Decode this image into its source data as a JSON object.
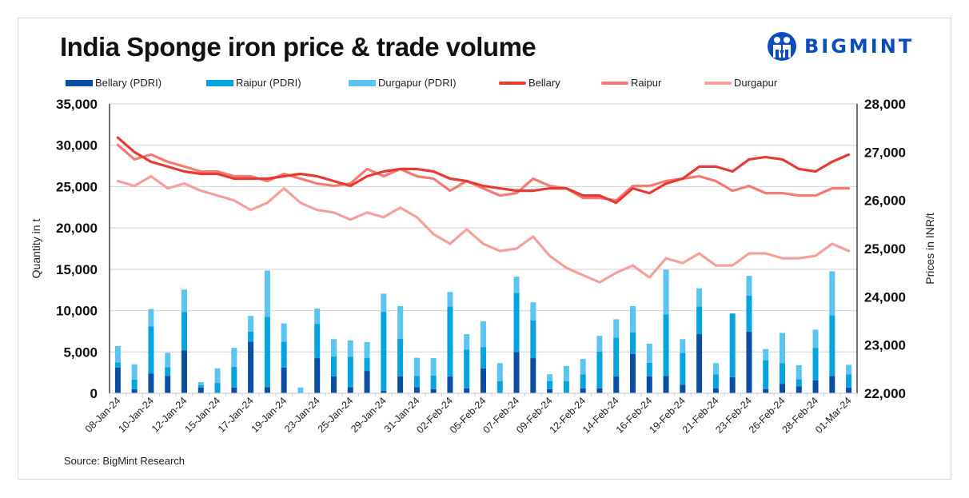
{
  "header": {
    "title": "India Sponge iron price & trade volume",
    "logo_text": "BIGMINT",
    "logo_icon": "bigmint-people-icon"
  },
  "legend": [
    {
      "label": "Bellary (PDRI)",
      "kind": "bar",
      "color": "#0a4ea3"
    },
    {
      "label": "Raipur (PDRI)",
      "kind": "bar",
      "color": "#05a3e0"
    },
    {
      "label": "Durgapur (PDRI)",
      "kind": "bar",
      "color": "#5bc5f2"
    },
    {
      "label": "Bellary",
      "kind": "line",
      "color": "#e83a35"
    },
    {
      "label": "Raipur",
      "kind": "line",
      "color": "#f27b73"
    },
    {
      "label": "Durgapur",
      "kind": "line",
      "color": "#f4a19b"
    }
  ],
  "source": "Source: BigMint Research",
  "chart_data": {
    "type": "bar",
    "subtype": "stacked bar + line combo (dual axis)",
    "title": "India Sponge iron price & trade volume",
    "ylabel": "Quantity in t",
    "y2label": "Prices in INR/t",
    "ylim": [
      0,
      35000
    ],
    "y2lim": [
      22000,
      28000
    ],
    "yticks": [
      "0",
      "5,000",
      "10,000",
      "15,000",
      "20,000",
      "25,000",
      "30,000",
      "35,000"
    ],
    "y2ticks": [
      "22,000",
      "23,000",
      "24,000",
      "25,000",
      "26,000",
      "27,000",
      "28,000"
    ],
    "grid": true,
    "legend_position": "top",
    "categories": [
      "08-Jan-24",
      "",
      "10-Jan-24",
      "",
      "12-Jan-24",
      "",
      "15-Jan-24",
      "",
      "17-Jan-24",
      "",
      "19-Jan-24",
      "",
      "23-Jan-24",
      "",
      "25-Jan-24",
      "",
      "29-Jan-24",
      "",
      "31-Jan-24",
      "",
      "02-Feb-24",
      "",
      "05-Feb-24",
      "",
      "07-Feb-24",
      "",
      "09-Feb-24",
      "",
      "12-Feb-24",
      "",
      "14-Feb-24",
      "",
      "16-Feb-24",
      "",
      "19-Feb-24",
      "",
      "21-Feb-24",
      "",
      "23-Feb-24",
      "",
      "26-Feb-24",
      "",
      "28-Feb-24",
      "",
      "01-Mar-24"
    ],
    "series": [
      {
        "name": "Bellary (PDRI)",
        "type": "bar",
        "axis": "left",
        "color": "#0a4ea3",
        "values": [
          3100,
          500,
          2400,
          2100,
          5200,
          700,
          0,
          700,
          6250,
          750,
          3100,
          0,
          4250,
          2050,
          750,
          2700,
          300,
          2050,
          750,
          500,
          2050,
          600,
          3000,
          0,
          5000,
          4250,
          500,
          0,
          600,
          600,
          2050,
          4750,
          2050,
          2100,
          1050,
          7150,
          600,
          1950,
          7450,
          500,
          1150,
          850,
          1550,
          2100,
          700
        ]
      },
      {
        "name": "Raipur (PDRI)",
        "type": "bar",
        "axis": "left",
        "color": "#05a3e0",
        "values": [
          650,
          1150,
          5700,
          1050,
          4650,
          300,
          1250,
          2500,
          1200,
          8500,
          3150,
          0,
          4150,
          2400,
          3650,
          1550,
          9550,
          4550,
          1350,
          1650,
          8450,
          4700,
          2600,
          1450,
          7150,
          4550,
          950,
          1450,
          1700,
          4450,
          4700,
          2600,
          1650,
          7450,
          3850,
          3350,
          1700,
          7700,
          4350,
          3500,
          2500,
          850,
          3950,
          7350,
          1600
        ]
      },
      {
        "name": "Durgapur (PDRI)",
        "type": "bar",
        "axis": "left",
        "color": "#5bc5f2",
        "values": [
          1950,
          1850,
          2100,
          1750,
          2700,
          350,
          1750,
          2300,
          1900,
          5600,
          2200,
          700,
          1850,
          2100,
          2000,
          1950,
          2200,
          3950,
          2200,
          2100,
          1750,
          1850,
          3100,
          2200,
          1950,
          2200,
          850,
          1850,
          1850,
          1900,
          2200,
          3200,
          2300,
          5400,
          1650,
          2200,
          1350,
          0,
          2400,
          1350,
          3650,
          1700,
          2200,
          5300,
          1150
        ]
      },
      {
        "name": "Bellary",
        "type": "line",
        "axis": "right",
        "color": "#e83a35",
        "values": [
          27300,
          27000,
          26800,
          26700,
          26600,
          26550,
          26550,
          26450,
          26450,
          26450,
          26500,
          26550,
          26500,
          26400,
          26300,
          26500,
          26600,
          26650,
          26650,
          26600,
          26450,
          26400,
          26300,
          26250,
          26200,
          26200,
          26250,
          26250,
          26100,
          26100,
          25950,
          26250,
          26150,
          26350,
          26450,
          26700,
          26700,
          26600,
          26850,
          26900,
          26850,
          26650,
          26600,
          26800,
          26950
        ]
      },
      {
        "name": "Raipur",
        "type": "line",
        "axis": "right",
        "color": "#f27b73",
        "values": [
          27150,
          26850,
          26950,
          26800,
          26700,
          26600,
          26600,
          26500,
          26500,
          26400,
          26550,
          26450,
          26350,
          26300,
          26350,
          26650,
          26500,
          26650,
          26500,
          26450,
          26200,
          26400,
          26250,
          26100,
          26150,
          26450,
          26300,
          26250,
          26050,
          26050,
          26000,
          26300,
          26300,
          26400,
          26450,
          26500,
          26400,
          26200,
          26300,
          26150,
          26150,
          26100,
          26100,
          26250,
          26250
        ]
      },
      {
        "name": "Durgapur",
        "type": "line",
        "axis": "right",
        "color": "#f4a19b",
        "values": [
          26400,
          26300,
          26500,
          26250,
          26350,
          26200,
          26100,
          26000,
          25800,
          25950,
          26250,
          25950,
          25800,
          25750,
          25600,
          25750,
          25650,
          25850,
          25650,
          25300,
          25100,
          25400,
          25100,
          24950,
          25000,
          25250,
          24850,
          24600,
          24450,
          24300,
          24500,
          24650,
          24400,
          24800,
          24700,
          24900,
          24650,
          24650,
          24900,
          24900,
          24800,
          24800,
          24850,
          25100,
          24950
        ]
      }
    ]
  }
}
